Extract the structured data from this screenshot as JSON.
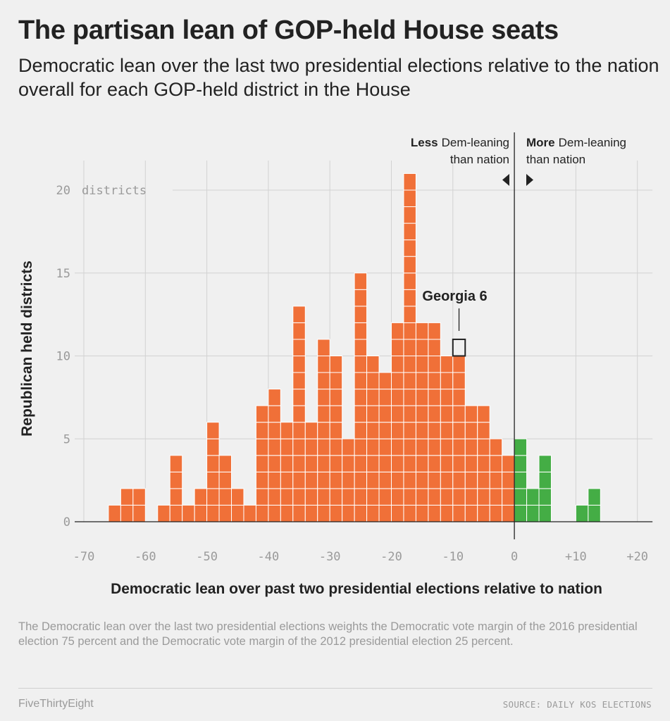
{
  "header": {
    "title": "The partisan lean of GOP-held House seats",
    "subtitle": "Democratic lean over the last two presidential elections relative to the nation overall for each GOP-held district in the House"
  },
  "footer": {
    "footnote": "The Democratic lean over the last two presidential elections weights the Democratic vote margin of the 2016 presidential election 75 percent and the Democratic vote margin of the 2012 presidential election 25 percent.",
    "brand": "FiveThirtyEight",
    "source": "SOURCE: DAILY KOS ELECTIONS"
  },
  "annotations": {
    "less_bold": "Less",
    "less_rest": "Dem-leaning",
    "less_line2": "than nation",
    "more_bold": "More",
    "more_rest": "Dem-leaning",
    "more_line2": "than nation",
    "highlight_label": "Georgia 6"
  },
  "colors": {
    "background": "#f0f0f0",
    "gridline": "#d2d2d2",
    "republican_lean": "#f07038",
    "democratic_lean": "#44ad45",
    "highlight_outline": "#222222",
    "text": "#222222",
    "muted_text": "#9a9a9a"
  },
  "chart_data": {
    "type": "bar",
    "title": "The partisan lean of GOP-held House seats",
    "xlabel": "Democratic lean over past two presidential elections relative to nation",
    "ylabel": "Republican held districts",
    "xlim": [
      -72,
      22
    ],
    "ylim": [
      0,
      22
    ],
    "bin_width": 2,
    "x_ticks": [
      -70,
      -60,
      -50,
      -40,
      -30,
      -20,
      -10,
      0,
      10,
      20
    ],
    "x_tick_labels": [
      "-70",
      "-60",
      "-50",
      "-40",
      "-30",
      "-20",
      "-10",
      "0",
      "+10",
      "+20"
    ],
    "y_ticks": [
      0,
      5,
      10,
      15,
      20
    ],
    "y_tick_labels": [
      "0",
      "5",
      "10",
      "15",
      "20"
    ],
    "y_unit_label": "districts",
    "grid": true,
    "series": [
      {
        "x": [
          -65,
          -63,
          -61,
          -57,
          -55,
          -53,
          -51,
          -49,
          -47,
          -45,
          -43,
          -41,
          -39,
          -37,
          -35,
          -33,
          -31,
          -29,
          -27,
          -25,
          -23,
          -21,
          -19,
          -17,
          -15,
          -13,
          -11,
          -9,
          -7,
          -5,
          -3,
          -1
        ],
        "values": [
          1,
          2,
          2,
          1,
          4,
          1,
          2,
          6,
          4,
          2,
          1,
          7,
          8,
          6,
          13,
          6,
          11,
          10,
          5,
          15,
          10,
          9,
          12,
          21,
          12,
          12,
          10,
          10,
          7,
          7,
          5,
          4
        ]
      },
      {
        "x": [
          1,
          3,
          5,
          11,
          13
        ],
        "values": [
          5,
          2,
          4,
          1,
          2
        ]
      }
    ],
    "highlight": {
      "label": "Georgia 6",
      "x": -9,
      "y": 11
    }
  }
}
